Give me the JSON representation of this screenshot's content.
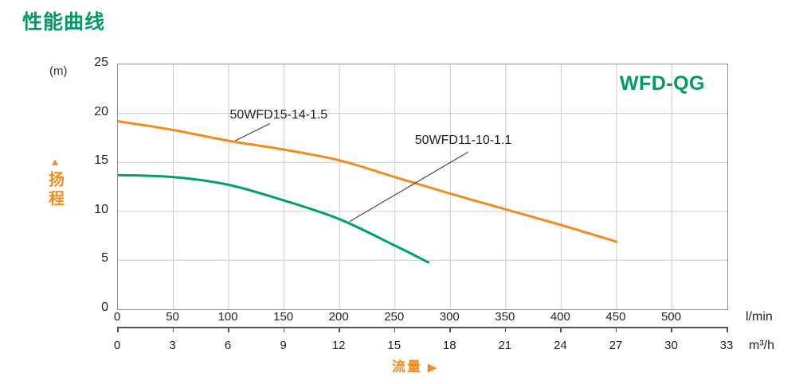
{
  "page": {
    "title": "性能曲线",
    "family": "WFD-QG"
  },
  "colors": {
    "brand_green": "#009b60",
    "orange": "#f28c1e",
    "curve_green": "#00a169",
    "grid": "#cccccc",
    "axis_border": "#8f8f8f",
    "leader": "#4a4a4a",
    "text": "#262626"
  },
  "y_axis": {
    "unit": "(m)",
    "label": "扬程",
    "arrow": "▲",
    "ticks": [
      25,
      20,
      15,
      10,
      5,
      0
    ]
  },
  "x_axis_lmin": {
    "unit": "l/min",
    "ticks": [
      0,
      50,
      100,
      150,
      200,
      250,
      300,
      350,
      400,
      450,
      500
    ],
    "max": 550
  },
  "x_axis_m3h": {
    "unit": "m³/h",
    "flow_label": "流量",
    "flow_arrow": "▶",
    "ticks": [
      0,
      3,
      6,
      9,
      12,
      15,
      18,
      21,
      24,
      27,
      30,
      33
    ],
    "max": 33
  },
  "chart_data": {
    "type": "line",
    "title": "性能曲线",
    "xlabel": "流量",
    "ylabel": "扬程",
    "x_units": [
      "l/min",
      "m³/h"
    ],
    "unit_conversion": "50 l/min = 3 m³/h",
    "x_range_lmin": [
      0,
      550
    ],
    "x_range_m3h": [
      0,
      33
    ],
    "y_range_m": [
      0,
      25
    ],
    "grid": true,
    "series": [
      {
        "name": "50WFD15-14-1.5",
        "color": "#f28c1e",
        "points_lmin_m": [
          [
            0,
            19.2
          ],
          [
            50,
            18.3
          ],
          [
            100,
            17.2
          ],
          [
            150,
            16.3
          ],
          [
            200,
            15.2
          ],
          [
            250,
            13.5
          ],
          [
            300,
            11.8
          ],
          [
            350,
            10.2
          ],
          [
            400,
            8.6
          ],
          [
            450,
            6.9
          ]
        ],
        "label": {
          "x_lmin": 101,
          "y_m": 20.5,
          "leader_from": [
            105,
            17.15
          ],
          "leader_to": [
            137,
            18.95
          ]
        }
      },
      {
        "name": "50WFD11-10-1.1",
        "color": "#00a169",
        "points_lmin_m": [
          [
            0,
            13.7
          ],
          [
            50,
            13.5
          ],
          [
            100,
            12.7
          ],
          [
            150,
            11.1
          ],
          [
            200,
            9.2
          ],
          [
            250,
            6.5
          ],
          [
            280,
            4.8
          ]
        ],
        "label": {
          "x_lmin": 268,
          "y_m": 17.9,
          "leader_from": [
            209,
            8.95
          ],
          "leader_to": [
            316,
            16.05
          ]
        }
      }
    ]
  }
}
